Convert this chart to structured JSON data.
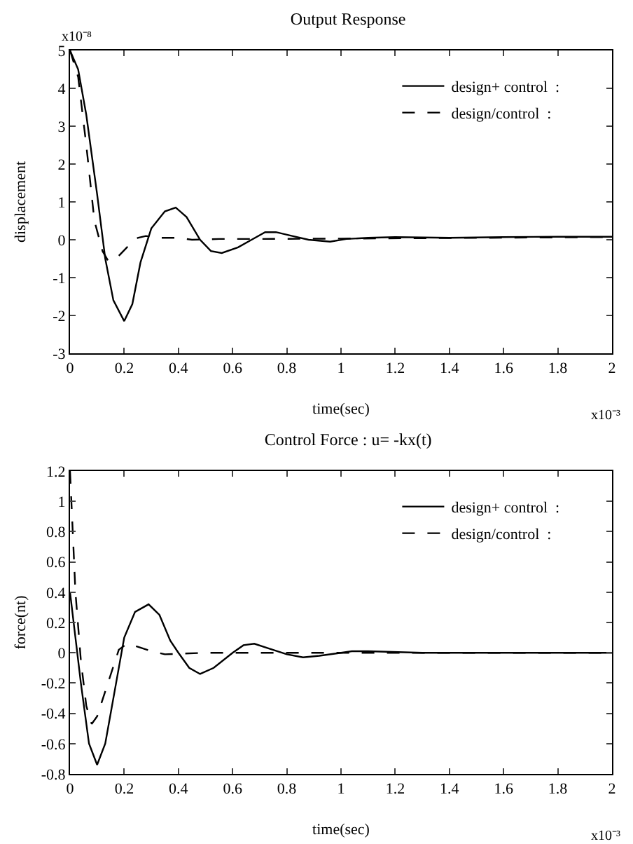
{
  "chart_data": [
    {
      "type": "line",
      "title": "Output Response",
      "xlabel": "time(sec)",
      "ylabel": "displacement",
      "annotations": [
        "x10⁻⁸",
        "x10⁻³"
      ],
      "xlim": [
        0,
        2
      ],
      "xticks": [
        0,
        0.2,
        0.4,
        0.6,
        0.8,
        1,
        1.2,
        1.4,
        1.6,
        1.8,
        2
      ],
      "ylim": [
        -3,
        5
      ],
      "yticks": [
        -3,
        -2,
        -1,
        0,
        1,
        2,
        3,
        4,
        5
      ],
      "grid": false,
      "legend": "top right",
      "marker": "none",
      "series": [
        {
          "name": "design+ control  :",
          "color": "#000000",
          "line_style": "solid",
          "x": [
            0,
            0.03,
            0.06,
            0.1,
            0.13,
            0.16,
            0.2,
            0.23,
            0.26,
            0.3,
            0.35,
            0.39,
            0.43,
            0.48,
            0.52,
            0.56,
            0.62,
            0.67,
            0.72,
            0.76,
            0.82,
            0.88,
            0.96,
            1.02,
            1.1,
            1.2,
            1.4,
            1.6,
            1.8,
            2
          ],
          "values": [
            5,
            4.5,
            3.3,
            1.2,
            -0.5,
            -1.6,
            -2.15,
            -1.7,
            -0.6,
            0.3,
            0.75,
            0.85,
            0.6,
            0,
            -0.3,
            -0.35,
            -0.2,
            0,
            0.2,
            0.2,
            0.1,
            0,
            -0.05,
            0.02,
            0.05,
            0.07,
            0.05,
            0.07,
            0.08,
            0.08
          ]
        },
        {
          "name": "design/control  :",
          "color": "#000000",
          "line_style": "dashed",
          "x": [
            0,
            0.03,
            0.06,
            0.09,
            0.12,
            0.14,
            0.17,
            0.21,
            0.25,
            0.28,
            0.32,
            0.4,
            0.45,
            0.55,
            0.7,
            1,
            1.5,
            2
          ],
          "values": [
            5,
            4.3,
            2.5,
            0.5,
            -0.3,
            -0.55,
            -0.5,
            -0.2,
            0.05,
            0.1,
            0.05,
            0.05,
            0,
            0.02,
            0.02,
            0.03,
            0.05,
            0.07
          ]
        }
      ]
    },
    {
      "type": "line",
      "title": "Control Force : u= -kx(t)",
      "xlabel": "time(sec)",
      "ylabel": "force(nt)",
      "annotations": [
        "x10⁻³"
      ],
      "xlim": [
        0,
        2
      ],
      "xticks": [
        0,
        0.2,
        0.4,
        0.6,
        0.8,
        1,
        1.2,
        1.4,
        1.6,
        1.8,
        2
      ],
      "ylim": [
        -0.8,
        1.2
      ],
      "yticks": [
        -0.8,
        -0.6,
        -0.4,
        -0.2,
        0,
        0.2,
        0.4,
        0.6,
        0.8,
        1,
        1.2
      ],
      "grid": false,
      "legend": "top right",
      "marker": "none",
      "series": [
        {
          "name": "design+ control  :",
          "color": "#000000",
          "line_style": "solid",
          "x": [
            0,
            0.02,
            0.04,
            0.07,
            0.1,
            0.13,
            0.17,
            0.2,
            0.24,
            0.29,
            0.33,
            0.37,
            0.4,
            0.44,
            0.48,
            0.53,
            0.6,
            0.64,
            0.68,
            0.73,
            0.8,
            0.86,
            0.92,
            1,
            1.04,
            1.1,
            1.3,
            2
          ],
          "values": [
            0.4,
            0.1,
            -0.2,
            -0.6,
            -0.74,
            -0.6,
            -0.2,
            0.1,
            0.27,
            0.32,
            0.25,
            0.08,
            0,
            -0.1,
            -0.14,
            -0.1,
            0,
            0.05,
            0.06,
            0.03,
            -0.01,
            -0.03,
            -0.02,
            0,
            0.01,
            0.01,
            0,
            0
          ]
        },
        {
          "name": "design/control  :",
          "color": "#000000",
          "line_style": "dashed",
          "x": [
            0,
            0.01,
            0.02,
            0.04,
            0.06,
            0.08,
            0.1,
            0.14,
            0.18,
            0.21,
            0.25,
            0.3,
            0.35,
            0.5,
            2
          ],
          "values": [
            1.2,
            0.8,
            0.4,
            -0.05,
            -0.35,
            -0.47,
            -0.42,
            -0.2,
            0.02,
            0.06,
            0.04,
            0.01,
            -0.01,
            0,
            0
          ]
        }
      ]
    }
  ]
}
